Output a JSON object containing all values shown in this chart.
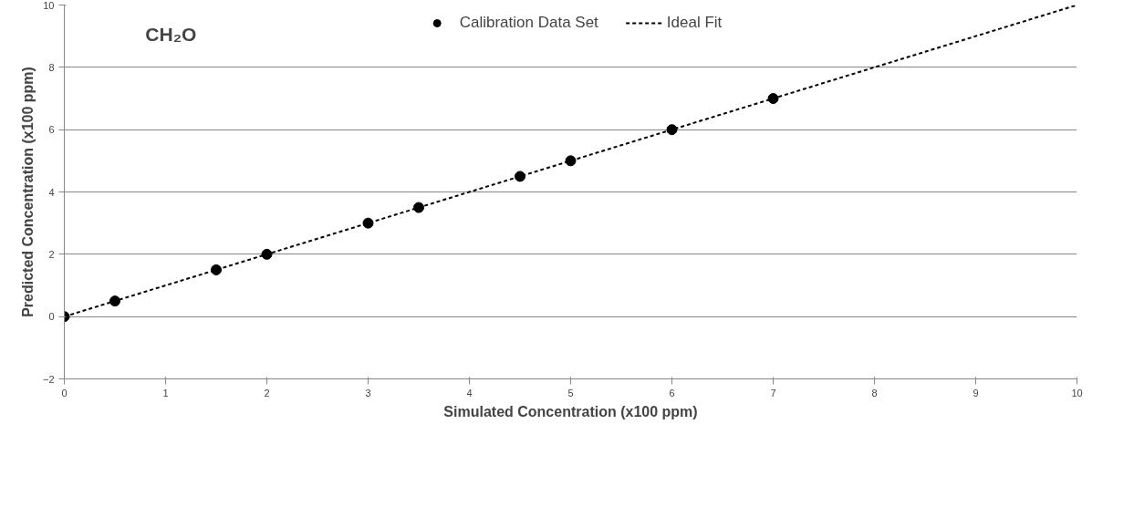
{
  "chart_data": {
    "type": "scatter",
    "xlabel": "Simulated Concentration (x100 ppm)",
    "ylabel": "Predicted Concentration (x100 ppm)",
    "annotations": [
      "CH₂O"
    ],
    "series": [
      {
        "name": "Calibration Data Set",
        "marker": "circle",
        "color": "#000000",
        "x": [
          0,
          0.5,
          1.5,
          2,
          3,
          3.5,
          4.5,
          5,
          6,
          7
        ],
        "values": [
          0,
          0.5,
          1.5,
          2,
          3,
          3.5,
          4.5,
          5,
          6,
          7
        ]
      },
      {
        "name": "Ideal Fit",
        "type": "line",
        "color": "#000000",
        "line_style": "dashed",
        "x": [
          0,
          10
        ],
        "values": [
          0,
          10
        ]
      }
    ],
    "xlim": [
      0,
      10
    ],
    "xticks": [
      0,
      1,
      2,
      3,
      4,
      5,
      6,
      7,
      8,
      9,
      10
    ],
    "ylim": [
      -2,
      10
    ],
    "yticks": [
      -2,
      0,
      2,
      4,
      6,
      8,
      10
    ],
    "grid": "y",
    "legend": "top"
  }
}
